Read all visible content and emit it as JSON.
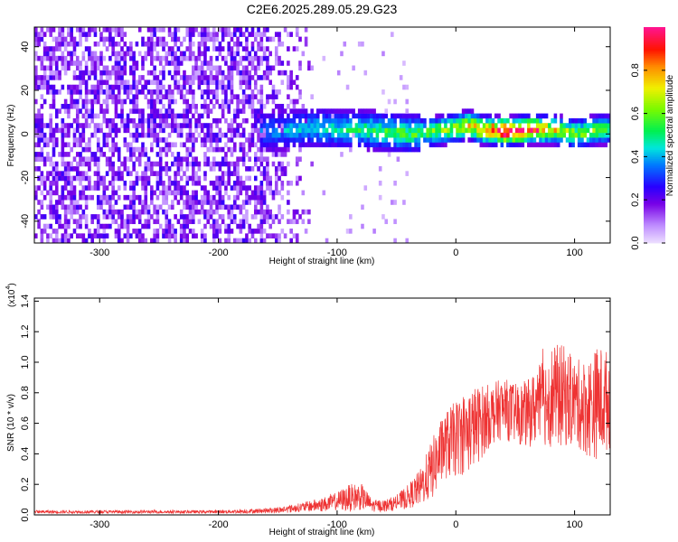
{
  "title": "C2E6.2025.289.05.29.G23",
  "chart_data": [
    {
      "type": "heatmap",
      "name": "spectrogram",
      "xlabel": "Height of straight line (km)",
      "ylabel": "Frequency (Hz)",
      "xlim": [
        -355,
        130
      ],
      "ylim": [
        -50,
        49
      ],
      "xticks": [
        "-300",
        "-200",
        "-100",
        "0",
        "100"
      ],
      "xtick_values": [
        -300,
        -200,
        -100,
        0,
        100
      ],
      "yticks": [
        "-40",
        "-20",
        "0",
        "20",
        "40"
      ],
      "ytick_values": [
        -40,
        -20,
        0,
        20,
        40
      ],
      "colorbar": {
        "label": "Normalized spectral amplitude",
        "range": [
          0,
          1
        ],
        "ticks": [
          "0.0",
          "0.2",
          "0.4",
          "0.6",
          "0.8"
        ],
        "tick_values": [
          0.0,
          0.2,
          0.4,
          0.6,
          0.8
        ]
      },
      "noise_region_x": [
        -355,
        -120
      ],
      "signal_track": {
        "x": [
          -160,
          -140,
          -120,
          -100,
          -80,
          -60,
          -40,
          -20,
          0,
          10,
          20,
          40,
          60,
          80,
          100,
          120,
          130
        ],
        "freq": [
          0,
          1,
          2,
          1,
          1,
          0,
          -1,
          0,
          2,
          3,
          1,
          0,
          1,
          1,
          -1,
          1,
          1
        ],
        "amplitude": [
          0.2,
          0.25,
          0.3,
          0.3,
          0.35,
          0.4,
          0.4,
          0.45,
          0.55,
          0.6,
          0.7,
          0.95,
          0.85,
          0.6,
          0.5,
          0.45,
          0.4
        ]
      }
    },
    {
      "type": "line",
      "name": "snr",
      "xlabel": "Height of straight line (km)",
      "ylabel": "SNR (10 * v/v)",
      "ylabel_multiplier": "(x10",
      "ylabel_exponent": "4",
      "ylabel_multiplier_close": ")",
      "xlim": [
        -355,
        130
      ],
      "ylim": [
        0,
        1.42
      ],
      "xticks": [
        "-300",
        "-200",
        "-100",
        "0",
        "100"
      ],
      "xtick_values": [
        -300,
        -200,
        -100,
        0,
        100
      ],
      "yticks": [
        "0.0",
        "0.2",
        "0.4",
        "0.6",
        "0.8",
        "1.0",
        "1.2",
        "1.4"
      ],
      "ytick_values": [
        0.0,
        0.2,
        0.4,
        0.6,
        0.8,
        1.0,
        1.2,
        1.4
      ],
      "color": "#ee3333",
      "series": {
        "x": [
          -355,
          -300,
          -250,
          -200,
          -170,
          -150,
          -130,
          -110,
          -100,
          -90,
          -80,
          -70,
          -60,
          -50,
          -40,
          -30,
          -20,
          -10,
          0,
          10,
          20,
          30,
          40,
          50,
          60,
          70,
          80,
          90,
          100,
          110,
          120,
          130
        ],
        "mean": [
          0.02,
          0.02,
          0.02,
          0.02,
          0.025,
          0.03,
          0.05,
          0.07,
          0.09,
          0.11,
          0.12,
          0.06,
          0.06,
          0.08,
          0.12,
          0.18,
          0.3,
          0.45,
          0.5,
          0.55,
          0.6,
          0.66,
          0.7,
          0.66,
          0.66,
          0.72,
          0.78,
          0.78,
          0.74,
          0.7,
          0.74,
          0.75
        ],
        "spread": [
          0.01,
          0.01,
          0.01,
          0.01,
          0.015,
          0.02,
          0.03,
          0.05,
          0.06,
          0.09,
          0.09,
          0.04,
          0.04,
          0.05,
          0.08,
          0.12,
          0.2,
          0.22,
          0.25,
          0.28,
          0.25,
          0.2,
          0.2,
          0.2,
          0.22,
          0.26,
          0.34,
          0.34,
          0.28,
          0.32,
          0.38,
          0.32
        ]
      }
    }
  ]
}
